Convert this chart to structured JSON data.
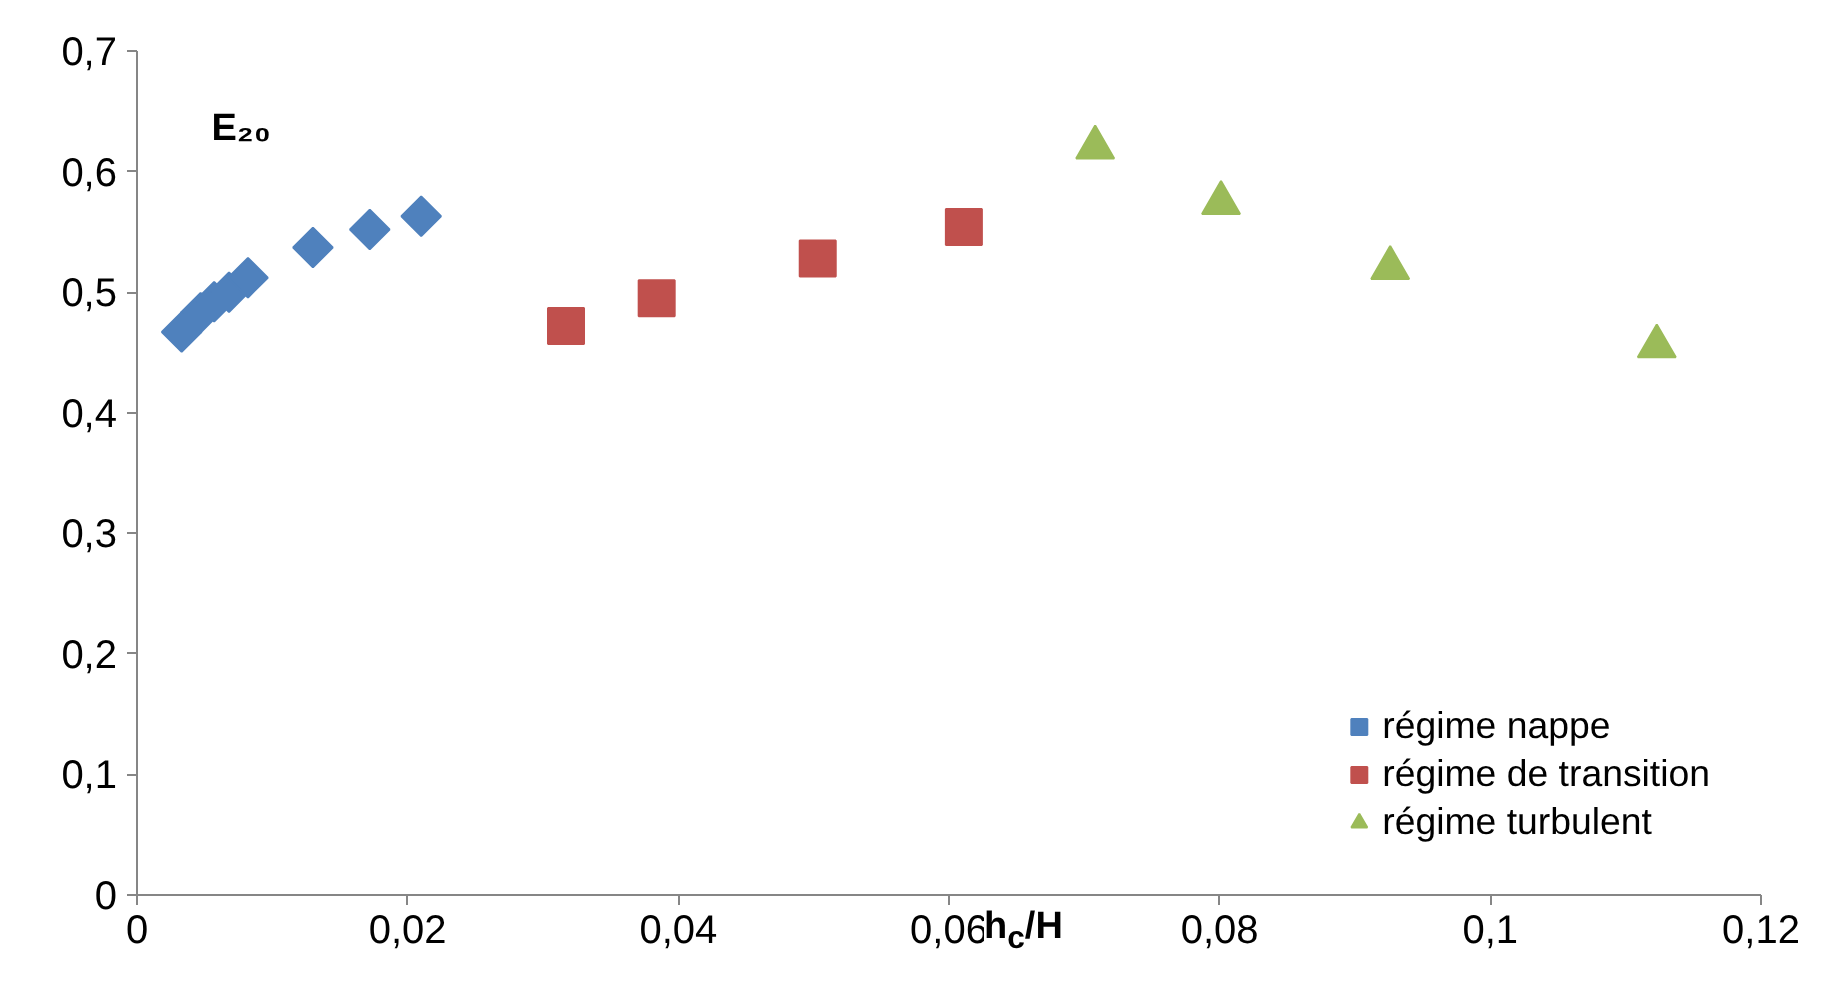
{
  "chart_data": {
    "type": "scatter",
    "xlabel": "h$_{c}$/H",
    "ylabel": "E₂₀",
    "xlim": [
      0,
      0.12
    ],
    "xticks": [
      {
        "value": 0,
        "label": "0"
      },
      {
        "value": 0.02,
        "label": "0,02"
      },
      {
        "value": 0.04,
        "label": "0,04"
      },
      {
        "value": 0.06,
        "label": "0,06"
      },
      {
        "value": 0.08,
        "label": "0,08"
      },
      {
        "value": 0.1,
        "label": "0,1"
      },
      {
        "value": 0.12,
        "label": "0,12"
      }
    ],
    "ylim": [
      0,
      0.7
    ],
    "yticks": [
      {
        "value": 0,
        "label": "0"
      },
      {
        "value": 0.1,
        "label": "0,1"
      },
      {
        "value": 0.2,
        "label": "0,2"
      },
      {
        "value": 0.3,
        "label": "0,3"
      },
      {
        "value": 0.4,
        "label": "0,4"
      },
      {
        "value": 0.5,
        "label": "0,5"
      },
      {
        "value": 0.6,
        "label": "0,6"
      },
      {
        "value": 0.7,
        "label": "0,7"
      }
    ],
    "grid": false,
    "legend": "bottom right",
    "series": [
      {
        "name": "régime nappe",
        "color": "#4f81bd",
        "marker": "diamond",
        "x": [
          0.0033,
          0.0047,
          0.0057,
          0.0068,
          0.0082,
          0.013,
          0.0172,
          0.021
        ],
        "values": [
          0.467,
          0.483,
          0.492,
          0.5,
          0.512,
          0.537,
          0.552,
          0.563
        ]
      },
      {
        "name": "régime de transition",
        "color": "#c0504d",
        "marker": "square",
        "x": [
          0.0317,
          0.0384,
          0.0503,
          0.0611
        ],
        "values": [
          0.472,
          0.495,
          0.528,
          0.554
        ]
      },
      {
        "name": "régime turbulent",
        "color": "#9bbb59",
        "marker": "triangle",
        "x": [
          0.0708,
          0.0801,
          0.0926,
          0.1123
        ],
        "values": [
          0.62,
          0.574,
          0.52,
          0.455
        ]
      }
    ]
  }
}
